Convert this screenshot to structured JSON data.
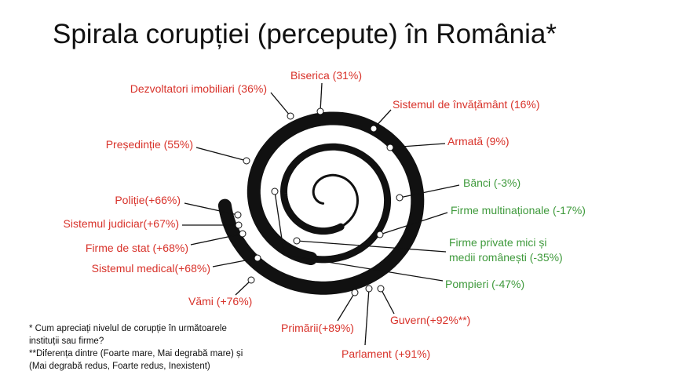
{
  "title": "Spirala corupției (percepute) în România*",
  "nodes": [
    {
      "lines": [
        "Biserica (31%)"
      ],
      "color": "#d8322a"
    },
    {
      "lines": [
        "Dezvoltatori imobiliari (36%)"
      ],
      "color": "#d8322a"
    },
    {
      "lines": [
        "Sistemul de  învățământ (16%)"
      ],
      "color": "#d8322a"
    },
    {
      "lines": [
        "Armată (9%)"
      ],
      "color": "#d8322a"
    },
    {
      "lines": [
        "Președinție (55%)"
      ],
      "color": "#d8322a"
    },
    {
      "lines": [
        "Bănci (-3%)"
      ],
      "color": "#3f9a3c"
    },
    {
      "lines": [
        "Poliție(+66%)"
      ],
      "color": "#d8322a"
    },
    {
      "lines": [
        "Firme multinaționale (-17%)"
      ],
      "color": "#3f9a3c"
    },
    {
      "lines": [
        "Sistemul judiciar(+67%)"
      ],
      "color": "#d8322a"
    },
    {
      "lines": [
        "Firme private mici și",
        "medii românești (-35%)"
      ],
      "color": "#3f9a3c"
    },
    {
      "lines": [
        "Firme de stat (+68%)"
      ],
      "color": "#d8322a"
    },
    {
      "lines": [
        "Sistemul medical(+68%)"
      ],
      "color": "#d8322a"
    },
    {
      "lines": [
        "Pompieri (-47%)"
      ],
      "color": "#3f9a3c"
    },
    {
      "lines": [
        "Vămi (+76%)"
      ],
      "color": "#d8322a"
    },
    {
      "lines": [
        "Primării(+89%)"
      ],
      "color": "#d8322a"
    },
    {
      "lines": [
        "Guvern(+92%**)"
      ],
      "color": "#d8322a"
    },
    {
      "lines": [
        "Parlament (+91%)"
      ],
      "color": "#d8322a"
    }
  ],
  "footnote": {
    "lines": [
      "* Cum apreciați nivelul de corupție în următoarele",
      "instituții sau firme?",
      "**Diferența dintre  (Foarte mare, Mai degrabă mare) și",
      "(Mai degrabă redus, Foarte redus, Inexistent)"
    ]
  }
}
